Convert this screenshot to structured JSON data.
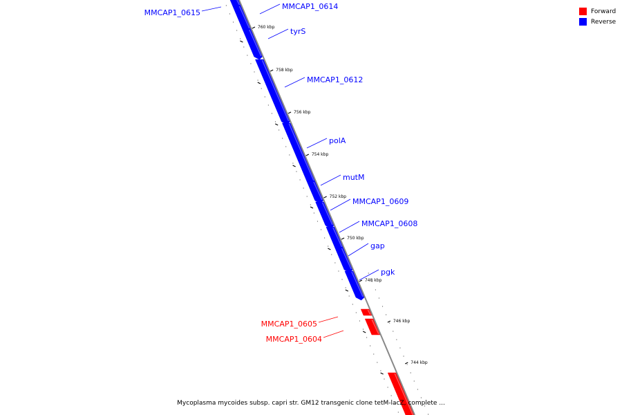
{
  "colors": {
    "forward": "#ff0000",
    "reverse": "#0000ff",
    "backbone": "#888888",
    "tick": "#000000"
  },
  "legend": {
    "forward_label": "Forward",
    "reverse_label": "Reverse"
  },
  "caption": "Mycoplasma mycoides subsp. capri str. GM12 transgenic clone tetM-lacZ, complete ...",
  "kbp_marks": [
    {
      "label": "760 kbp"
    },
    {
      "label": "758 kbp"
    },
    {
      "label": "756 kbp"
    },
    {
      "label": "754 kbp"
    },
    {
      "label": "752 kbp"
    },
    {
      "label": "750 kbp"
    },
    {
      "label": "748 kbp"
    },
    {
      "label": "746 kbp"
    },
    {
      "label": "744 kbp"
    }
  ],
  "genes": [
    {
      "name": "MMCAP1_0615",
      "strand": "reverse"
    },
    {
      "name": "MMCAP1_0614",
      "strand": "reverse"
    },
    {
      "name": "tyrS",
      "strand": "reverse"
    },
    {
      "name": "MMCAP1_0612",
      "strand": "reverse"
    },
    {
      "name": "polA",
      "strand": "reverse"
    },
    {
      "name": "mutM",
      "strand": "reverse"
    },
    {
      "name": "MMCAP1_0609",
      "strand": "reverse"
    },
    {
      "name": "MMCAP1_0608",
      "strand": "reverse"
    },
    {
      "name": "gap",
      "strand": "reverse"
    },
    {
      "name": "pgk",
      "strand": "reverse"
    },
    {
      "name": "MMCAP1_0605",
      "strand": "forward"
    },
    {
      "name": "MMCAP1_0604",
      "strand": "forward"
    },
    {
      "name": "",
      "strand": "forward"
    }
  ]
}
